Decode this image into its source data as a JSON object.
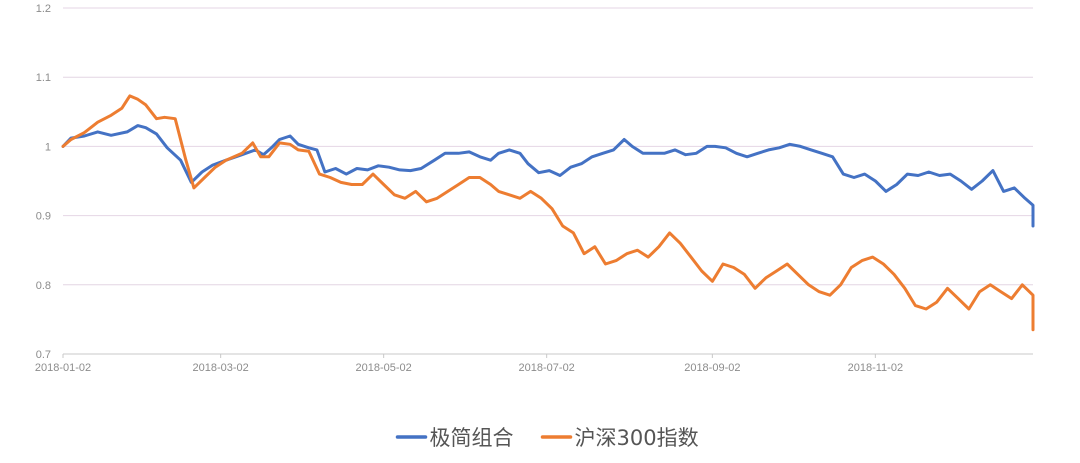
{
  "chart_data": {
    "type": "line",
    "title": "",
    "xlabel": "",
    "ylabel": "",
    "ylim": [
      0.7,
      1.2
    ],
    "y_ticks": [
      "0.7",
      "0.8",
      "0.9",
      "1",
      "1.1",
      "1.2"
    ],
    "x_ticks": [
      "2018-01-02",
      "2018-03-02",
      "2018-05-02",
      "2018-07-02",
      "2018-09-02",
      "2018-11-02"
    ],
    "x_range": [
      "2018-01-02",
      "2018-12-28"
    ],
    "grid": true,
    "legend_position": "bottom",
    "series": [
      {
        "name": "极简组合",
        "color": "#4472c4",
        "points": [
          [
            "2018-01-02",
            1.0
          ],
          [
            "2018-01-05",
            1.012
          ],
          [
            "2018-01-10",
            1.015
          ],
          [
            "2018-01-15",
            1.021
          ],
          [
            "2018-01-20",
            1.016
          ],
          [
            "2018-01-26",
            1.021
          ],
          [
            "2018-01-30",
            1.03
          ],
          [
            "2018-02-02",
            1.027
          ],
          [
            "2018-02-06",
            1.018
          ],
          [
            "2018-02-10",
            0.998
          ],
          [
            "2018-02-15",
            0.98
          ],
          [
            "2018-02-19",
            0.948
          ],
          [
            "2018-02-23",
            0.963
          ],
          [
            "2018-02-27",
            0.973
          ],
          [
            "2018-03-04",
            0.98
          ],
          [
            "2018-03-10",
            0.988
          ],
          [
            "2018-03-15",
            0.995
          ],
          [
            "2018-03-18",
            0.988
          ],
          [
            "2018-03-21",
            0.998
          ],
          [
            "2018-03-24",
            1.01
          ],
          [
            "2018-03-28",
            1.015
          ],
          [
            "2018-03-31",
            1.003
          ],
          [
            "2018-04-04",
            0.998
          ],
          [
            "2018-04-07",
            0.995
          ],
          [
            "2018-04-10",
            0.963
          ],
          [
            "2018-04-14",
            0.968
          ],
          [
            "2018-04-18",
            0.96
          ],
          [
            "2018-04-22",
            0.968
          ],
          [
            "2018-04-26",
            0.966
          ],
          [
            "2018-04-30",
            0.972
          ],
          [
            "2018-05-04",
            0.97
          ],
          [
            "2018-05-08",
            0.966
          ],
          [
            "2018-05-12",
            0.965
          ],
          [
            "2018-05-16",
            0.968
          ],
          [
            "2018-05-21",
            0.98
          ],
          [
            "2018-05-25",
            0.99
          ],
          [
            "2018-05-30",
            0.99
          ],
          [
            "2018-06-03",
            0.992
          ],
          [
            "2018-06-07",
            0.985
          ],
          [
            "2018-06-11",
            0.98
          ],
          [
            "2018-06-14",
            0.99
          ],
          [
            "2018-06-18",
            0.995
          ],
          [
            "2018-06-22",
            0.99
          ],
          [
            "2018-06-25",
            0.975
          ],
          [
            "2018-06-29",
            0.962
          ],
          [
            "2018-07-03",
            0.965
          ],
          [
            "2018-07-07",
            0.958
          ],
          [
            "2018-07-11",
            0.97
          ],
          [
            "2018-07-15",
            0.975
          ],
          [
            "2018-07-19",
            0.985
          ],
          [
            "2018-07-23",
            0.99
          ],
          [
            "2018-07-27",
            0.995
          ],
          [
            "2018-07-31",
            1.01
          ],
          [
            "2018-08-03",
            1.0
          ],
          [
            "2018-08-07",
            0.99
          ],
          [
            "2018-08-11",
            0.99
          ],
          [
            "2018-08-15",
            0.99
          ],
          [
            "2018-08-19",
            0.995
          ],
          [
            "2018-08-23",
            0.988
          ],
          [
            "2018-08-27",
            0.99
          ],
          [
            "2018-08-31",
            1.0
          ],
          [
            "2018-09-03",
            1.0
          ],
          [
            "2018-09-07",
            0.998
          ],
          [
            "2018-09-11",
            0.99
          ],
          [
            "2018-09-15",
            0.985
          ],
          [
            "2018-09-19",
            0.99
          ],
          [
            "2018-09-23",
            0.995
          ],
          [
            "2018-09-27",
            0.998
          ],
          [
            "2018-10-01",
            1.003
          ],
          [
            "2018-10-05",
            1.0
          ],
          [
            "2018-10-09",
            0.995
          ],
          [
            "2018-10-13",
            0.99
          ],
          [
            "2018-10-17",
            0.985
          ],
          [
            "2018-10-21",
            0.96
          ],
          [
            "2018-10-25",
            0.955
          ],
          [
            "2018-10-29",
            0.96
          ],
          [
            "2018-11-02",
            0.95
          ],
          [
            "2018-11-06",
            0.935
          ],
          [
            "2018-11-10",
            0.945
          ],
          [
            "2018-11-14",
            0.96
          ],
          [
            "2018-11-18",
            0.958
          ],
          [
            "2018-11-22",
            0.963
          ],
          [
            "2018-11-26",
            0.958
          ],
          [
            "2018-11-30",
            0.96
          ],
          [
            "2018-12-04",
            0.95
          ],
          [
            "2018-12-08",
            0.938
          ],
          [
            "2018-12-12",
            0.95
          ],
          [
            "2018-12-16",
            0.965
          ],
          [
            "2018-12-20",
            0.935
          ],
          [
            "2018-12-24",
            0.94
          ],
          [
            "2018-12-28",
            0.925
          ],
          [
            "2019-01-01",
            0.915
          ],
          [
            "2019-01-05",
            0.89
          ],
          [
            "2019-01-08",
            0.885
          ],
          [
            "2019-01-12",
            0.898
          ],
          [
            "2019-01-14",
            0.898
          ]
        ]
      },
      {
        "name": "沪深300指数",
        "color": "#ed7d31",
        "points": [
          [
            "2018-01-02",
            1.0
          ],
          [
            "2018-01-05",
            1.01
          ],
          [
            "2018-01-10",
            1.02
          ],
          [
            "2018-01-15",
            1.035
          ],
          [
            "2018-01-20",
            1.045
          ],
          [
            "2018-01-24",
            1.055
          ],
          [
            "2018-01-27",
            1.073
          ],
          [
            "2018-01-30",
            1.068
          ],
          [
            "2018-02-02",
            1.06
          ],
          [
            "2018-02-06",
            1.04
          ],
          [
            "2018-02-09",
            1.042
          ],
          [
            "2018-02-13",
            1.04
          ],
          [
            "2018-02-17",
            0.98
          ],
          [
            "2018-02-20",
            0.94
          ],
          [
            "2018-02-24",
            0.955
          ],
          [
            "2018-02-28",
            0.97
          ],
          [
            "2018-03-04",
            0.98
          ],
          [
            "2018-03-10",
            0.99
          ],
          [
            "2018-03-14",
            1.005
          ],
          [
            "2018-03-17",
            0.985
          ],
          [
            "2018-03-20",
            0.985
          ],
          [
            "2018-03-24",
            1.005
          ],
          [
            "2018-03-28",
            1.003
          ],
          [
            "2018-03-31",
            0.995
          ],
          [
            "2018-04-04",
            0.993
          ],
          [
            "2018-04-08",
            0.96
          ],
          [
            "2018-04-12",
            0.955
          ],
          [
            "2018-04-16",
            0.948
          ],
          [
            "2018-04-20",
            0.945
          ],
          [
            "2018-04-24",
            0.945
          ],
          [
            "2018-04-28",
            0.96
          ],
          [
            "2018-05-02",
            0.945
          ],
          [
            "2018-05-06",
            0.93
          ],
          [
            "2018-05-10",
            0.925
          ],
          [
            "2018-05-14",
            0.935
          ],
          [
            "2018-05-18",
            0.92
          ],
          [
            "2018-05-22",
            0.925
          ],
          [
            "2018-05-26",
            0.935
          ],
          [
            "2018-05-30",
            0.945
          ],
          [
            "2018-06-03",
            0.955
          ],
          [
            "2018-06-07",
            0.955
          ],
          [
            "2018-06-11",
            0.945
          ],
          [
            "2018-06-14",
            0.935
          ],
          [
            "2018-06-18",
            0.93
          ],
          [
            "2018-06-22",
            0.925
          ],
          [
            "2018-06-26",
            0.935
          ],
          [
            "2018-06-30",
            0.925
          ],
          [
            "2018-07-04",
            0.91
          ],
          [
            "2018-07-08",
            0.885
          ],
          [
            "2018-07-12",
            0.875
          ],
          [
            "2018-07-16",
            0.845
          ],
          [
            "2018-07-20",
            0.855
          ],
          [
            "2018-07-24",
            0.83
          ],
          [
            "2018-07-28",
            0.835
          ],
          [
            "2018-08-01",
            0.845
          ],
          [
            "2018-08-05",
            0.85
          ],
          [
            "2018-08-09",
            0.84
          ],
          [
            "2018-08-13",
            0.855
          ],
          [
            "2018-08-17",
            0.875
          ],
          [
            "2018-08-21",
            0.86
          ],
          [
            "2018-08-25",
            0.84
          ],
          [
            "2018-08-29",
            0.82
          ],
          [
            "2018-09-02",
            0.805
          ],
          [
            "2018-09-06",
            0.83
          ],
          [
            "2018-09-10",
            0.825
          ],
          [
            "2018-09-14",
            0.815
          ],
          [
            "2018-09-18",
            0.795
          ],
          [
            "2018-09-22",
            0.81
          ],
          [
            "2018-09-26",
            0.82
          ],
          [
            "2018-09-30",
            0.83
          ],
          [
            "2018-10-04",
            0.815
          ],
          [
            "2018-10-08",
            0.8
          ],
          [
            "2018-10-12",
            0.79
          ],
          [
            "2018-10-16",
            0.785
          ],
          [
            "2018-10-20",
            0.8
          ],
          [
            "2018-10-24",
            0.825
          ],
          [
            "2018-10-28",
            0.835
          ],
          [
            "2018-11-01",
            0.84
          ],
          [
            "2018-11-05",
            0.83
          ],
          [
            "2018-11-09",
            0.815
          ],
          [
            "2018-11-13",
            0.795
          ],
          [
            "2018-11-17",
            0.77
          ],
          [
            "2018-11-21",
            0.765
          ],
          [
            "2018-11-25",
            0.775
          ],
          [
            "2018-11-29",
            0.795
          ],
          [
            "2018-12-03",
            0.78
          ],
          [
            "2018-12-07",
            0.765
          ],
          [
            "2018-12-11",
            0.79
          ],
          [
            "2018-12-15",
            0.8
          ],
          [
            "2018-12-19",
            0.79
          ],
          [
            "2018-12-23",
            0.78
          ],
          [
            "2018-12-27",
            0.8
          ],
          [
            "2018-12-31",
            0.785
          ],
          [
            "2019-01-03",
            0.77
          ],
          [
            "2019-01-07",
            0.765
          ],
          [
            "2019-01-10",
            0.745
          ],
          [
            "2019-01-13",
            0.735
          ]
        ]
      }
    ]
  }
}
